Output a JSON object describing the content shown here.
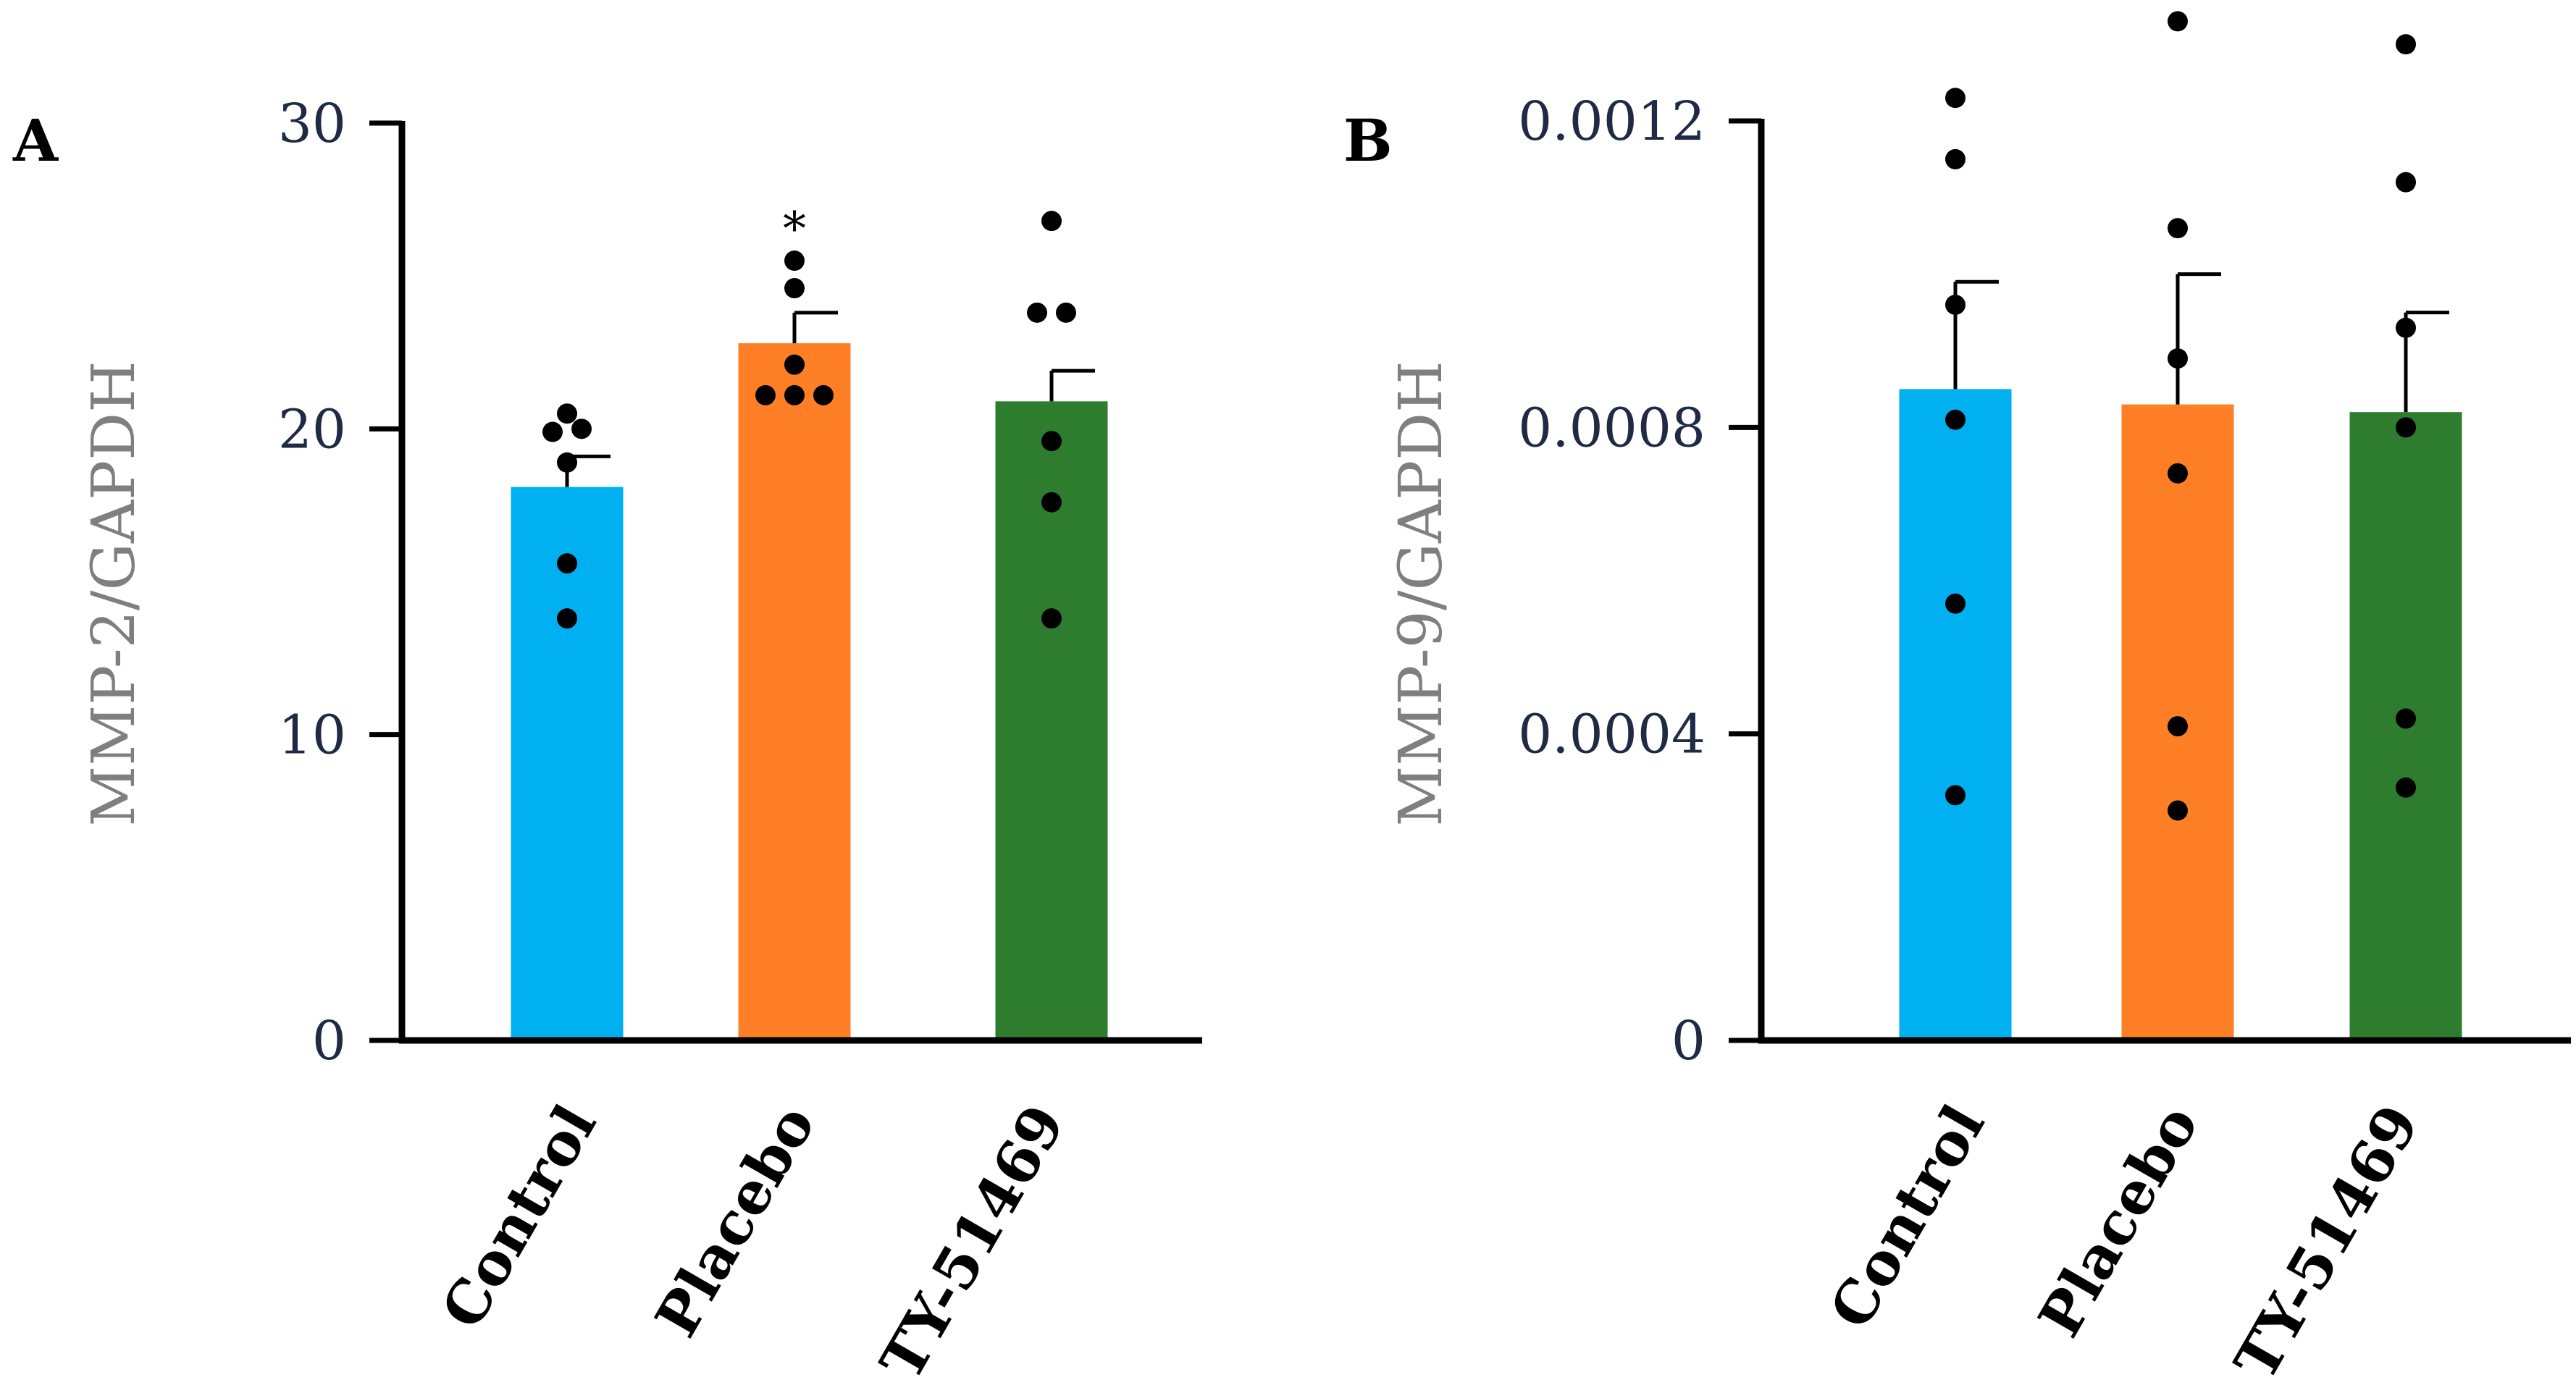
{
  "chart_data": [
    {
      "panel": "A",
      "type": "bar",
      "ylabel": "MMP-2/GAPDH",
      "xlabel": "",
      "ylim": [
        0,
        30
      ],
      "yticks": [
        0,
        10,
        20,
        30
      ],
      "ytick_labels": [
        "0",
        "10",
        "20",
        "30"
      ],
      "categories": [
        "Control",
        "Placebo",
        "TY-51469"
      ],
      "values": [
        18.1,
        22.8,
        20.9
      ],
      "errors": [
        1.0,
        1.0,
        1.0
      ],
      "bar_colors": [
        "#00b0f0",
        "#ff7f27",
        "#2e7d2e"
      ],
      "points": [
        [
          20.5,
          19.9,
          20.0,
          18.9,
          15.6,
          13.8
        ],
        [
          25.5,
          24.6,
          22.1,
          21.1,
          21.1,
          21.1
        ],
        [
          26.8,
          23.8,
          23.8,
          19.6,
          17.6,
          13.8
        ]
      ],
      "annotations": [
        {
          "category": "Placebo",
          "text": "*"
        }
      ]
    },
    {
      "panel": "B",
      "type": "bar",
      "ylabel": "MMP-9/GAPDH",
      "xlabel": "",
      "ylim": [
        0,
        0.0012
      ],
      "yticks": [
        0,
        0.0004,
        0.0008,
        0.0012
      ],
      "ytick_labels": [
        "0",
        "0.0004",
        "0.0008",
        "0.0012"
      ],
      "categories": [
        "Control",
        "Placebo",
        "TY-51469"
      ],
      "values": [
        0.00085,
        0.00083,
        0.00082
      ],
      "errors": [
        0.00014,
        0.00017,
        0.00013
      ],
      "bar_colors": [
        "#00b0f0",
        "#ff7f27",
        "#2e7d2e"
      ],
      "points": [
        [
          0.00123,
          0.00115,
          0.00096,
          0.00081,
          0.00057,
          0.00032
        ],
        [
          0.00133,
          0.00106,
          0.00089,
          0.00074,
          0.00041,
          0.0003
        ],
        [
          0.0013,
          0.00112,
          0.00093,
          0.0008,
          0.00042,
          0.00033
        ]
      ],
      "annotations": []
    }
  ]
}
